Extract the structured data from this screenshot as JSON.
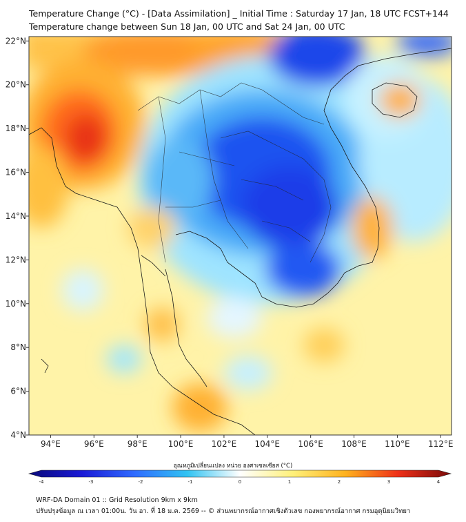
{
  "title": {
    "line1": "Temperature Change (°C) - [Data Assimilation] _ Initial Time : Saturday 17 Jan, 18 UTC FCST+144",
    "line2": "Temperature change between Sun 18 Jan, 00 UTC and Sat 24 Jan, 00 UTC"
  },
  "map": {
    "lon_range": [
      93,
      112.5
    ],
    "lat_range": [
      4,
      22.2
    ],
    "x_ticks": [
      "94°E",
      "96°E",
      "98°E",
      "100°E",
      "102°E",
      "104°E",
      "106°E",
      "108°E",
      "110°E",
      "112°E"
    ],
    "y_ticks": [
      "22°N",
      "20°N",
      "18°N",
      "16°N",
      "14°N",
      "12°N",
      "10°N",
      "8°N",
      "6°N",
      "4°N"
    ],
    "x_values": [
      94,
      96,
      98,
      100,
      102,
      104,
      106,
      108,
      110,
      112
    ],
    "y_values": [
      22,
      20,
      18,
      16,
      14,
      12,
      10,
      8,
      6,
      4
    ]
  },
  "colorbar": {
    "title": "อุณหภูมิเปลี่ยนแปลง หน่วย องศาเซลเซียส (°C)",
    "range": [
      -4,
      4
    ],
    "ticks": [
      "-4",
      "-3",
      "-2",
      "-1",
      "0",
      "1",
      "2",
      "3",
      "4"
    ],
    "colors": [
      "#0a0a7a",
      "#1a1ad6",
      "#2f6bff",
      "#31c3f2",
      "#ffffff",
      "#fff07a",
      "#ffb21e",
      "#ee3018",
      "#7a0a0a"
    ]
  },
  "footer": {
    "line1": "WRF-DA Domain 01 :: Grid Resolution 9km x 9km",
    "line2": "ปรับปรุงข้อมูล ณ เวลา 01:00น. วัน อา. ที่ 18 ม.ค. 2569 -- © ส่วนพยากรณ์อากาศเชิงตัวเลข กองพยากรณ์อากาศ กรมอุตุนิยมวิทยา"
  }
}
